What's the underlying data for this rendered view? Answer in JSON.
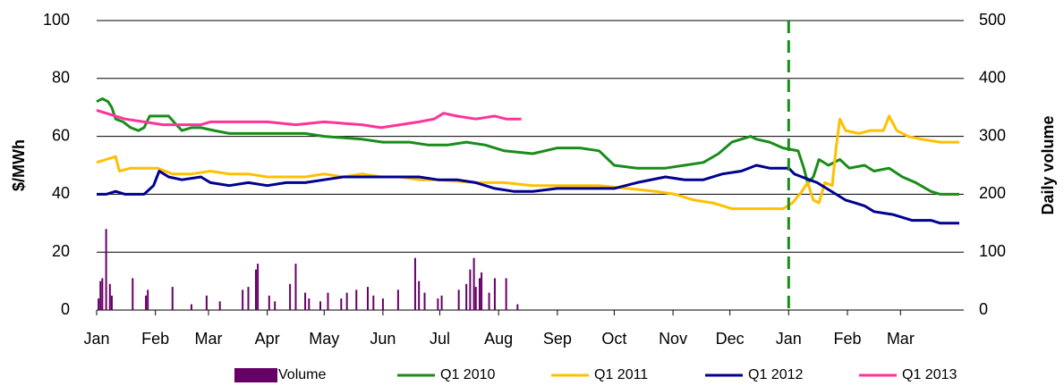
{
  "chart_data": {
    "type": "line",
    "y_label": "$/MWh",
    "y2_label": "Daily volume",
    "xlim": [
      0,
      455
    ],
    "xticks": [
      {
        "value": 0,
        "label": "Jan"
      },
      {
        "value": 31,
        "label": "Feb"
      },
      {
        "value": 59,
        "label": "Mar"
      },
      {
        "value": 90,
        "label": "Apr"
      },
      {
        "value": 120,
        "label": "May"
      },
      {
        "value": 151,
        "label": "Jun"
      },
      {
        "value": 181,
        "label": "Jul"
      },
      {
        "value": 212,
        "label": "Aug"
      },
      {
        "value": 243,
        "label": "Sep"
      },
      {
        "value": 273,
        "label": "Oct"
      },
      {
        "value": 304,
        "label": "Nov"
      },
      {
        "value": 334,
        "label": "Dec"
      },
      {
        "value": 365,
        "label": "Jan"
      },
      {
        "value": 396,
        "label": "Feb"
      },
      {
        "value": 424,
        "label": "Mar"
      }
    ],
    "ylim": [
      0,
      100
    ],
    "yticks": [
      0,
      20,
      40,
      60,
      80,
      100
    ],
    "y2lim": [
      0,
      500
    ],
    "y2ticks": [
      0,
      100,
      200,
      300,
      400,
      500
    ],
    "grid": true,
    "legend": "bottom",
    "vline": {
      "x": 365,
      "color": "#1a8c1a",
      "dashed": true
    },
    "series": [
      {
        "name": "Volume",
        "type": "bar",
        "axis": "y2",
        "color": "#660066",
        "x": [
          1,
          2,
          3,
          5,
          7,
          8,
          19,
          26,
          27,
          40,
          50,
          58,
          65,
          77,
          80,
          84,
          85,
          91,
          94,
          102,
          105,
          110,
          112,
          118,
          122,
          129,
          132,
          137,
          143,
          146,
          151,
          159,
          168,
          170,
          173,
          180,
          182,
          191,
          195,
          197,
          199,
          200,
          202,
          203,
          207,
          210,
          216,
          222
        ],
        "values": [
          20,
          50,
          55,
          140,
          45,
          25,
          55,
          25,
          35,
          40,
          10,
          25,
          15,
          35,
          40,
          70,
          80,
          25,
          15,
          45,
          80,
          30,
          20,
          15,
          30,
          20,
          30,
          35,
          40,
          25,
          20,
          35,
          90,
          50,
          30,
          20,
          25,
          35,
          45,
          70,
          90,
          40,
          55,
          65,
          30,
          55,
          55,
          10
        ]
      },
      {
        "name": "Q1 2010",
        "color": "#1a8c1a",
        "x": [
          0,
          3,
          6,
          8,
          10,
          14,
          18,
          22,
          25,
          28,
          33,
          38,
          42,
          45,
          50,
          55,
          62,
          70,
          80,
          90,
          100,
          110,
          120,
          140,
          151,
          165,
          175,
          185,
          195,
          205,
          215,
          230,
          243,
          255,
          265,
          273,
          285,
          300,
          310,
          320,
          328,
          335,
          345,
          348,
          355,
          362,
          370,
          373,
          375,
          378,
          381,
          386,
          392,
          397,
          405,
          410,
          418,
          425,
          432,
          440,
          445,
          455
        ],
        "values": [
          72,
          73,
          72,
          70,
          66,
          65,
          63,
          62,
          63,
          67,
          67,
          67,
          64,
          62,
          63,
          63,
          62,
          61,
          61,
          61,
          61,
          61,
          60,
          59,
          58,
          58,
          57,
          57,
          58,
          57,
          55,
          54,
          56,
          56,
          55,
          50,
          49,
          49,
          50,
          51,
          54,
          58,
          60,
          59,
          58,
          56,
          55,
          49,
          44,
          46,
          52,
          50,
          52,
          49,
          50,
          48,
          49,
          46,
          44,
          41,
          40,
          40
        ]
      },
      {
        "name": "Q1 2011",
        "color": "#ffc000",
        "x": [
          0,
          5,
          10,
          12,
          18,
          25,
          32,
          40,
          50,
          60,
          70,
          80,
          90,
          100,
          110,
          120,
          130,
          140,
          150,
          160,
          170,
          180,
          200,
          215,
          230,
          250,
          265,
          280,
          295,
          305,
          315,
          325,
          335,
          345,
          355,
          362,
          367,
          372,
          375,
          378,
          381,
          384,
          388,
          390,
          392,
          395,
          402,
          408,
          415,
          418,
          422,
          428,
          435,
          445,
          455
        ],
        "values": [
          51,
          52,
          53,
          48,
          49,
          49,
          49,
          47,
          47,
          48,
          47,
          47,
          46,
          46,
          46,
          47,
          46,
          47,
          46,
          46,
          45,
          45,
          44,
          44,
          43,
          43,
          43,
          42,
          41,
          40,
          38,
          37,
          35,
          35,
          35,
          35,
          37,
          41,
          44,
          38,
          37,
          44,
          43,
          56,
          66,
          62,
          61,
          62,
          62,
          67,
          62,
          60,
          59,
          58,
          58
        ]
      },
      {
        "name": "Q1 2012",
        "color": "#000090",
        "x": [
          0,
          5,
          10,
          15,
          25,
          30,
          33,
          38,
          45,
          55,
          60,
          70,
          80,
          90,
          100,
          110,
          120,
          130,
          140,
          150,
          160,
          170,
          180,
          190,
          200,
          210,
          220,
          230,
          243,
          255,
          265,
          273,
          285,
          300,
          310,
          320,
          330,
          340,
          348,
          355,
          360,
          365,
          368,
          372,
          376,
          380,
          385,
          390,
          395,
          400,
          405,
          410,
          420,
          430,
          440,
          445,
          455
        ],
        "values": [
          40,
          40,
          41,
          40,
          40,
          43,
          48,
          46,
          45,
          46,
          44,
          43,
          44,
          43,
          44,
          44,
          45,
          46,
          46,
          46,
          46,
          46,
          45,
          45,
          44,
          42,
          41,
          41,
          42,
          42,
          42,
          42,
          44,
          46,
          45,
          45,
          47,
          48,
          50,
          49,
          49,
          49,
          47,
          46,
          45,
          44,
          42,
          40,
          38,
          37,
          36,
          34,
          33,
          31,
          31,
          30,
          30
        ]
      },
      {
        "name": "Q1 2013",
        "color": "#ff3399",
        "x": [
          0,
          5,
          15,
          25,
          35,
          45,
          55,
          60,
          75,
          90,
          105,
          120,
          140,
          150,
          160,
          170,
          178,
          183,
          190,
          200,
          210,
          216,
          224
        ],
        "values": [
          69,
          68,
          66,
          65,
          64,
          64,
          64,
          65,
          65,
          65,
          64,
          65,
          64,
          63,
          64,
          65,
          66,
          68,
          67,
          66,
          67,
          66,
          66
        ]
      }
    ]
  }
}
